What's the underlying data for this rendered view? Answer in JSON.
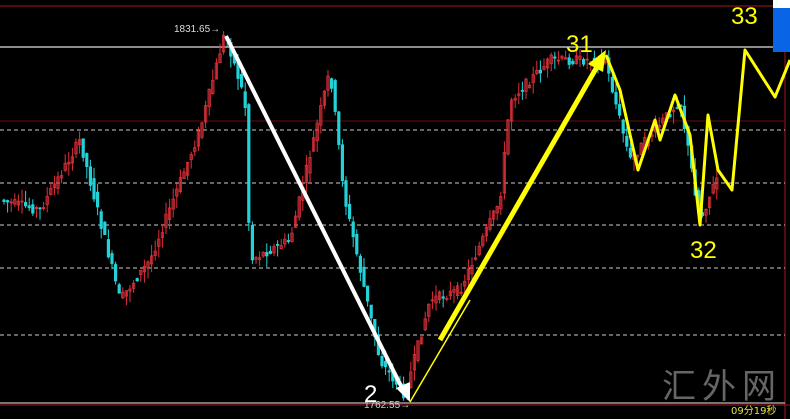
{
  "chart_data": {
    "type": "line",
    "title": "",
    "price_labels": {
      "high": "1831.65",
      "low": "1762.55"
    },
    "annotations": [
      {
        "text": "2",
        "color": "#ffffff"
      },
      {
        "text": "31",
        "color": "#ffff00"
      },
      {
        "text": "32",
        "color": "#ffff00"
      },
      {
        "text": "33",
        "color": "#ffff00"
      }
    ],
    "watermark": "汇外网",
    "timer": "09分19秒",
    "colors": {
      "up": "#e0303a",
      "down": "#22d3d8",
      "background": "#000000",
      "arrow_down": "#ffffff",
      "arrow_up": "#ffff00"
    },
    "grid": true
  }
}
